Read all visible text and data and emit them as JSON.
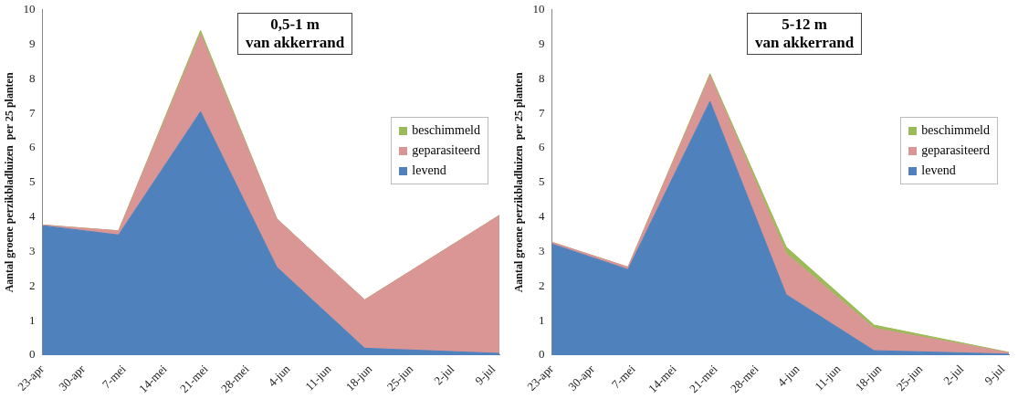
{
  "chart_data": [
    {
      "type": "area",
      "stacked": true,
      "title": "0,5-1 m\nvan akkerrand",
      "ylabel": "Aantal groene perzikbladluizen  per 25 planten",
      "x": [
        "--04-23",
        "--05-06",
        "--05-20",
        "--06-02",
        "--06-17",
        "--07-10"
      ],
      "series": [
        {
          "name": "levend",
          "color": "#4f81bd",
          "values": [
            3.75,
            3.48,
            7.05,
            2.55,
            0.2,
            0.05
          ]
        },
        {
          "name": "geparasiteerd",
          "color": "#d99694",
          "values": [
            0.02,
            0.12,
            2.25,
            1.4,
            1.4,
            4.0
          ]
        },
        {
          "name": "beschimmeld",
          "color": "#9bbb59",
          "values": [
            0,
            0,
            0.1,
            0,
            0,
            0
          ]
        }
      ],
      "xlim": [
        "--04-23",
        "--07-10"
      ],
      "xticks": [
        {
          "value": "--04-23",
          "label": "23-apr"
        },
        {
          "value": "--04-30",
          "label": "30-apr"
        },
        {
          "value": "--05-07",
          "label": "7-mei"
        },
        {
          "value": "--05-14",
          "label": "14-mei"
        },
        {
          "value": "--05-21",
          "label": "21-mei"
        },
        {
          "value": "--05-28",
          "label": "28-mei"
        },
        {
          "value": "--06-04",
          "label": "4-jun"
        },
        {
          "value": "--06-11",
          "label": "11-jun"
        },
        {
          "value": "--06-18",
          "label": "18-jun"
        },
        {
          "value": "--06-25",
          "label": "25-jun"
        },
        {
          "value": "--07-02",
          "label": "2-jul"
        },
        {
          "value": "--07-09",
          "label": "9-jul"
        }
      ],
      "ylim": [
        0,
        10
      ],
      "yticks": [
        0,
        1,
        2,
        3,
        4,
        5,
        6,
        7,
        8,
        9,
        10
      ],
      "legend": "right",
      "grid": false
    },
    {
      "type": "area",
      "stacked": true,
      "title": "5-12 m\nvan akkerrand",
      "ylabel": "Aantal groene perzikbladluizen  per 25 planten",
      "x": [
        "--04-23",
        "--05-06",
        "--05-20",
        "--06-02",
        "--06-17",
        "--07-10"
      ],
      "series": [
        {
          "name": "levend",
          "color": "#4f81bd",
          "values": [
            3.22,
            2.48,
            7.35,
            1.75,
            0.13,
            0.03
          ]
        },
        {
          "name": "geparasiteerd",
          "color": "#d99694",
          "values": [
            0.05,
            0.07,
            0.75,
            1.2,
            0.65,
            0.04
          ]
        },
        {
          "name": "beschimmeld",
          "color": "#9bbb59",
          "values": [
            0,
            0,
            0.05,
            0.18,
            0.09,
            0.01
          ]
        }
      ],
      "xlim": [
        "--04-23",
        "--07-10"
      ],
      "xticks": [
        {
          "value": "--04-23",
          "label": "23-apr"
        },
        {
          "value": "--04-30",
          "label": "30-apr"
        },
        {
          "value": "--05-07",
          "label": "7-mei"
        },
        {
          "value": "--05-14",
          "label": "14-mei"
        },
        {
          "value": "--05-21",
          "label": "21-mei"
        },
        {
          "value": "--05-28",
          "label": "28-mei"
        },
        {
          "value": "--06-04",
          "label": "4-jun"
        },
        {
          "value": "--06-11",
          "label": "11-jun"
        },
        {
          "value": "--06-18",
          "label": "18-jun"
        },
        {
          "value": "--06-25",
          "label": "25-jun"
        },
        {
          "value": "--07-02",
          "label": "2-jul"
        },
        {
          "value": "--07-09",
          "label": "9-jul"
        }
      ],
      "ylim": [
        0,
        10
      ],
      "yticks": [
        0,
        1,
        2,
        3,
        4,
        5,
        6,
        7,
        8,
        9,
        10
      ],
      "legend": "right",
      "grid": false
    }
  ]
}
